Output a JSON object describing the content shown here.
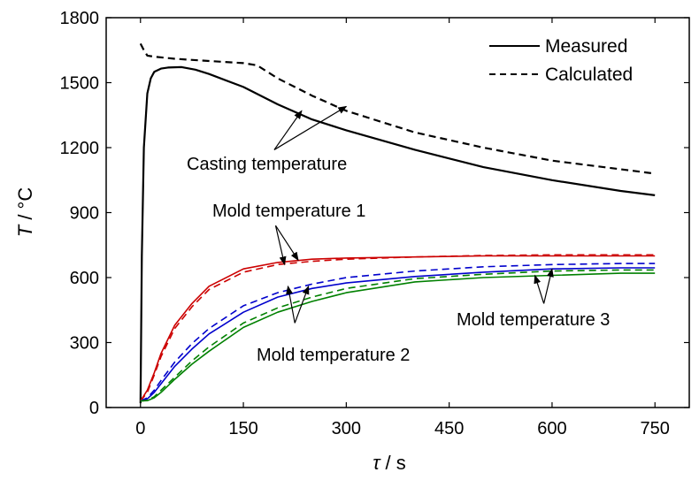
{
  "chart_data": {
    "type": "line",
    "xlabel": {
      "symbol": "τ",
      "unit": "s"
    },
    "ylabel": {
      "symbol": "T",
      "unit": "°C"
    },
    "xlim": [
      -50,
      800
    ],
    "ylim": [
      0,
      1800
    ],
    "xticks": [
      0,
      150,
      300,
      450,
      600,
      750
    ],
    "yticks": [
      0,
      300,
      600,
      900,
      1200,
      1500,
      1800
    ],
    "grid": false,
    "legend": {
      "position": "top-right",
      "entries": [
        {
          "label": "Measured",
          "style": "solid"
        },
        {
          "label": "Calculated",
          "style": "dashed"
        }
      ]
    },
    "series": [
      {
        "group": "casting",
        "kind": "Measured",
        "color": "#000000",
        "dash": false,
        "x": [
          0,
          2,
          5,
          10,
          15,
          20,
          30,
          40,
          60,
          80,
          100,
          150,
          200,
          250,
          300,
          400,
          500,
          600,
          700,
          750
        ],
        "y": [
          20,
          700,
          1200,
          1450,
          1520,
          1550,
          1565,
          1570,
          1572,
          1560,
          1540,
          1480,
          1400,
          1330,
          1280,
          1190,
          1110,
          1050,
          1000,
          980
        ]
      },
      {
        "group": "casting",
        "kind": "Calculated",
        "color": "#000000",
        "dash": true,
        "x": [
          0,
          5,
          10,
          20,
          50,
          100,
          150,
          170,
          200,
          250,
          300,
          400,
          500,
          600,
          700,
          750
        ],
        "y": [
          1680,
          1650,
          1625,
          1620,
          1610,
          1600,
          1590,
          1580,
          1520,
          1440,
          1370,
          1270,
          1200,
          1140,
          1100,
          1080
        ]
      },
      {
        "group": "mold1",
        "kind": "Measured",
        "color": "#cc0000",
        "dash": false,
        "x": [
          0,
          10,
          20,
          30,
          50,
          75,
          100,
          150,
          200,
          250,
          300,
          400,
          500,
          600,
          700,
          750
        ],
        "y": [
          30,
          80,
          160,
          250,
          380,
          480,
          560,
          640,
          670,
          685,
          690,
          695,
          700,
          700,
          700,
          700
        ]
      },
      {
        "group": "mold1",
        "kind": "Calculated",
        "color": "#cc0000",
        "dash": true,
        "x": [
          0,
          10,
          20,
          30,
          50,
          75,
          100,
          150,
          200,
          250,
          300,
          400,
          500,
          600,
          700,
          750
        ],
        "y": [
          30,
          70,
          150,
          235,
          365,
          465,
          545,
          625,
          660,
          675,
          685,
          695,
          702,
          705,
          705,
          705
        ]
      },
      {
        "group": "mold2",
        "kind": "Measured",
        "color": "#0000cc",
        "dash": false,
        "x": [
          0,
          10,
          20,
          30,
          50,
          75,
          100,
          150,
          200,
          250,
          300,
          400,
          500,
          600,
          700,
          750
        ],
        "y": [
          30,
          40,
          70,
          110,
          190,
          270,
          340,
          440,
          510,
          550,
          575,
          605,
          625,
          640,
          645,
          645
        ]
      },
      {
        "group": "mold2",
        "kind": "Calculated",
        "color": "#0000cc",
        "dash": true,
        "x": [
          0,
          10,
          20,
          30,
          50,
          75,
          100,
          150,
          200,
          250,
          300,
          400,
          500,
          600,
          700,
          750
        ],
        "y": [
          30,
          45,
          80,
          125,
          210,
          295,
          365,
          470,
          530,
          570,
          600,
          630,
          650,
          660,
          665,
          665
        ]
      },
      {
        "group": "mold3",
        "kind": "Measured",
        "color": "#008000",
        "dash": false,
        "x": [
          0,
          10,
          20,
          30,
          50,
          75,
          100,
          150,
          200,
          250,
          300,
          400,
          500,
          600,
          700,
          750
        ],
        "y": [
          30,
          32,
          45,
          70,
          130,
          200,
          260,
          370,
          440,
          490,
          530,
          580,
          600,
          610,
          620,
          620
        ]
      },
      {
        "group": "mold3",
        "kind": "Calculated",
        "color": "#008000",
        "dash": true,
        "x": [
          0,
          10,
          20,
          30,
          50,
          75,
          100,
          150,
          200,
          250,
          300,
          400,
          500,
          600,
          700,
          750
        ],
        "y": [
          30,
          33,
          50,
          80,
          140,
          215,
          280,
          390,
          460,
          510,
          550,
          595,
          615,
          630,
          635,
          635
        ]
      }
    ],
    "annotations": [
      {
        "text": "Casting temperature",
        "arrows": [
          {
            "from": [
              195,
              1190
            ],
            "to": [
              235,
              1370
            ]
          },
          {
            "from": [
              195,
              1190
            ],
            "to": [
              300,
              1390
            ]
          }
        ]
      },
      {
        "text": "Mold temperature 1",
        "arrows": [
          {
            "from": [
              197,
              840
            ],
            "to": [
              210,
              660
            ]
          },
          {
            "from": [
              197,
              840
            ],
            "to": [
              230,
              680
            ]
          }
        ]
      },
      {
        "text": "Mold temperature 2",
        "arrows": [
          {
            "from": [
              225,
              390
            ],
            "to": [
              215,
              560
            ]
          },
          {
            "from": [
              225,
              390
            ],
            "to": [
              245,
              560
            ]
          }
        ]
      },
      {
        "text": "Mold temperature 3",
        "arrows": [
          {
            "from": [
              588,
              480
            ],
            "to": [
              575,
              610
            ]
          },
          {
            "from": [
              588,
              480
            ],
            "to": [
              600,
              640
            ]
          }
        ]
      }
    ]
  }
}
